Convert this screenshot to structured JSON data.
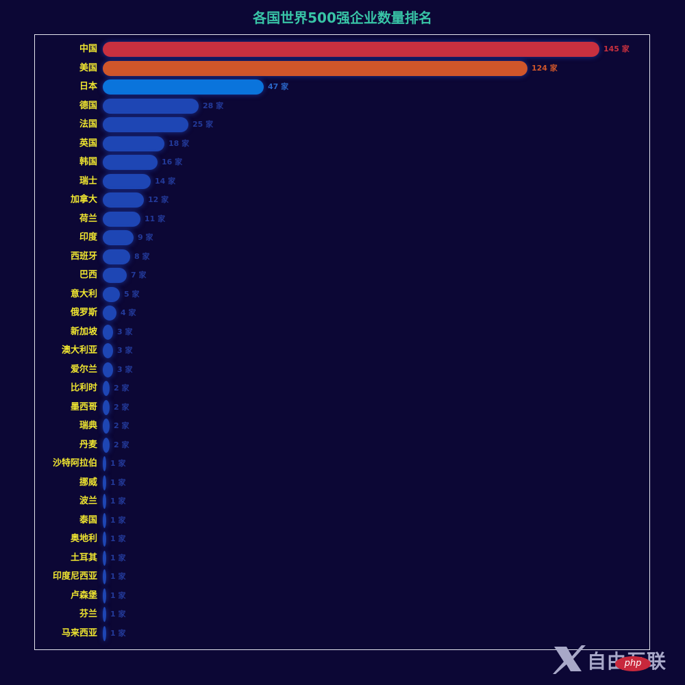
{
  "chart_data": {
    "type": "bar",
    "orientation": "horizontal",
    "title": "各国世界500强企业数量排名",
    "xlabel": "",
    "ylabel": "",
    "unit": "家",
    "grid": false,
    "legend": null,
    "categories": [
      "中国",
      "美国",
      "日本",
      "德国",
      "法国",
      "英国",
      "韩国",
      "瑞士",
      "加拿大",
      "荷兰",
      "印度",
      "西班牙",
      "巴西",
      "意大利",
      "俄罗斯",
      "新加坡",
      "澳大利亚",
      "爱尔兰",
      "比利时",
      "墨西哥",
      "瑞典",
      "丹麦",
      "沙特阿拉伯",
      "挪威",
      "波兰",
      "泰国",
      "奥地利",
      "土耳其",
      "印度尼西亚",
      "卢森堡",
      "芬兰",
      "马来西亚"
    ],
    "values": [
      145,
      124,
      47,
      28,
      25,
      18,
      16,
      14,
      12,
      11,
      9,
      8,
      7,
      5,
      4,
      3,
      3,
      3,
      2,
      2,
      2,
      2,
      1,
      1,
      1,
      1,
      1,
      1,
      1,
      1,
      1,
      1
    ],
    "value_labels": [
      "145 家",
      "124 家",
      "47 家",
      "28 家",
      "25 家",
      "18 家",
      "16 家",
      "14 家",
      "12 家",
      "11 家",
      "9 家",
      "8 家",
      "7 家",
      "5 家",
      "4 家",
      "3 家",
      "3 家",
      "3 家",
      "2 家",
      "2 家",
      "2 家",
      "2 家",
      "1 家",
      "1 家",
      "1 家",
      "1 家",
      "1 家",
      "1 家",
      "1 家",
      "1 家",
      "1 家",
      "1 家"
    ],
    "xlim": [
      0,
      145
    ]
  },
  "colors": {
    "background": "#0c0735",
    "title": "#38c4a6",
    "category_label": "#f0e630",
    "rank1": "#c8303f",
    "rank2": "#d0562a",
    "rank3": "#0a74dc",
    "others": "#1e46b4",
    "rank1_label": "#c8303f",
    "rank2_label": "#d0562a",
    "rank3_label": "#2a66c8",
    "others_label": "#233a9a",
    "frame": "#e6e6f0"
  },
  "watermark": {
    "text": "自由互联",
    "badge": "php"
  }
}
